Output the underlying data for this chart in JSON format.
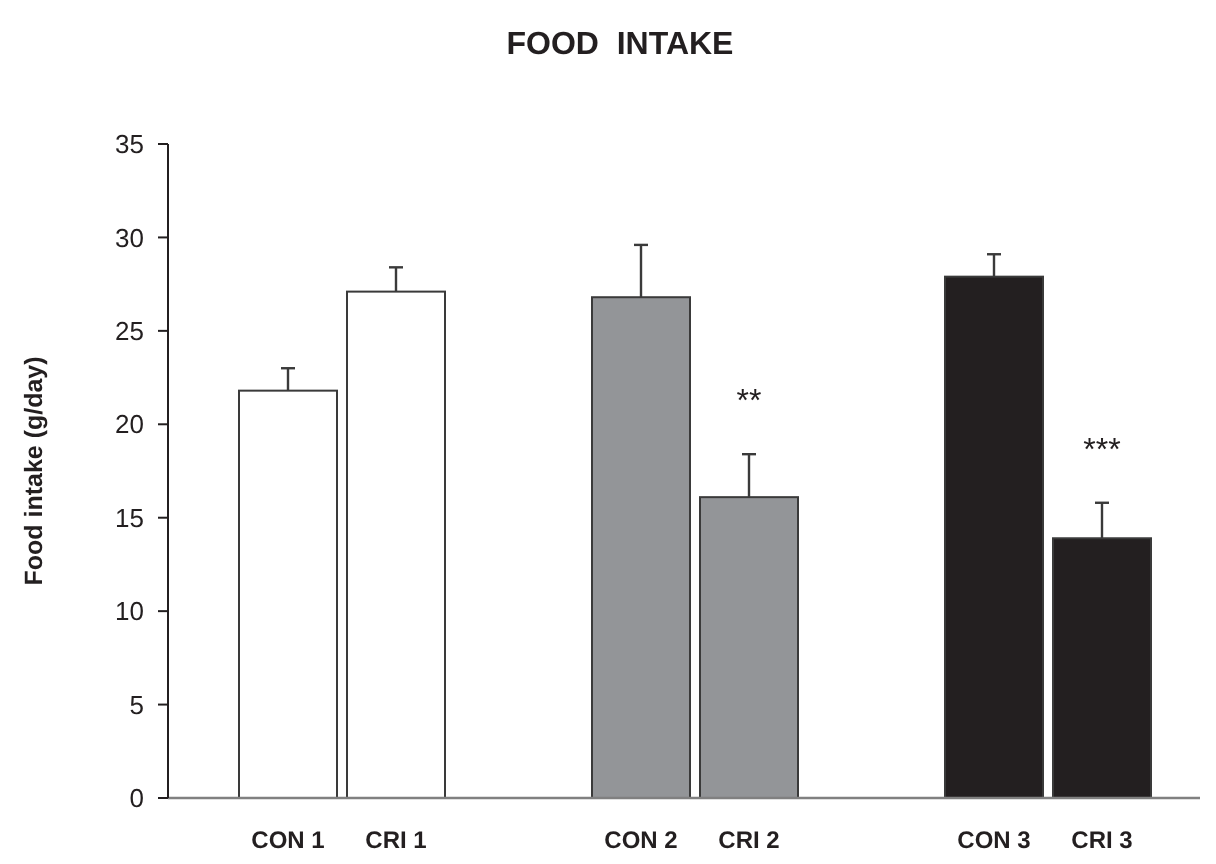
{
  "chart_data": {
    "type": "bar",
    "title": "FOOD  INTAKE",
    "ylabel": "Food intake (g/day)",
    "categories": [
      "CON 1",
      "CRI 1",
      "CON 2",
      "CRI 2",
      "CON 3",
      "CRI 3"
    ],
    "values": [
      21.8,
      27.1,
      26.8,
      16.1,
      27.9,
      13.9
    ],
    "errors": [
      1.2,
      1.3,
      2.8,
      2.3,
      1.2,
      1.9
    ],
    "colors": [
      "#ffffff",
      "#ffffff",
      "#939598",
      "#939598",
      "#231f20",
      "#231f20"
    ],
    "ylim": [
      0,
      35
    ],
    "yticks": [
      0,
      5,
      10,
      15,
      20,
      25,
      30,
      35
    ],
    "annotations": [
      {
        "text": "**",
        "x": "CRI 2",
        "y": 16.1
      },
      {
        "text": "***",
        "x": "CRI 3",
        "y": 13.9
      }
    ]
  }
}
